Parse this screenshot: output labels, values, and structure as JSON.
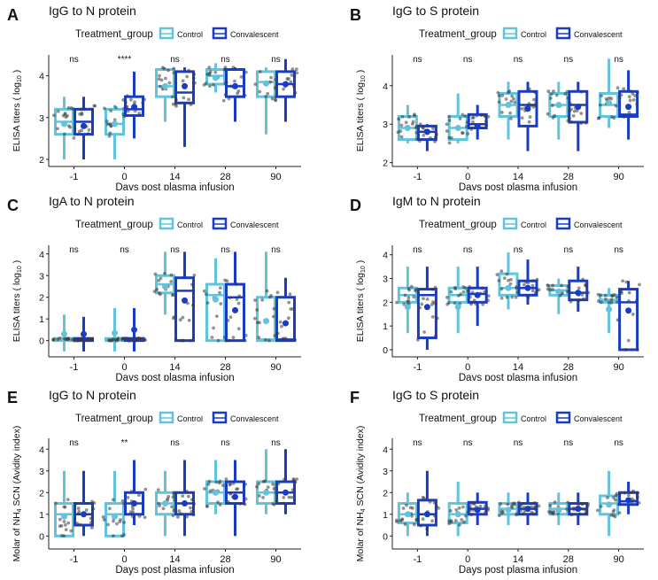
{
  "colors": {
    "Control": "#62c3dc",
    "Convalescent": "#1a3cc4",
    "points": "#3a3a3a"
  },
  "legend": {
    "title": "Treatment_group",
    "entries": [
      "Control",
      "Convalescent"
    ]
  },
  "chart_data": [
    {
      "panel_label": "A",
      "type": "box",
      "title": "IgG to N protein",
      "xlabel": "Days post plasma infusion",
      "ylabel": [
        "ELISA titers ( log",
        "10",
        " )"
      ],
      "categories": [
        "-1",
        "0",
        "14",
        "28",
        "90"
      ],
      "ylim": [
        1.83,
        4.5
      ],
      "yticks": [
        2,
        3,
        4
      ],
      "significance": [
        "ns",
        "****",
        "ns",
        "ns",
        "ns"
      ],
      "series": [
        {
          "name": "Control",
          "stats_order": "whisker_low,q1,median,q3,whisker_high,mean",
          "boxes": [
            [
              2.0,
              2.6,
              2.9,
              3.2,
              3.5,
              2.85
            ],
            [
              2.0,
              2.6,
              2.85,
              3.2,
              3.3,
              2.85
            ],
            [
              2.9,
              3.5,
              3.75,
              4.15,
              4.2,
              3.75
            ],
            [
              3.6,
              3.8,
              4.0,
              4.15,
              4.3,
              3.95
            ],
            [
              2.6,
              3.5,
              3.85,
              4.1,
              4.2,
              3.82
            ]
          ]
        },
        {
          "name": "Convalescent",
          "boxes": [
            [
              2.0,
              2.6,
              2.9,
              3.2,
              3.5,
              2.8
            ],
            [
              2.5,
              3.05,
              3.2,
              3.5,
              4.1,
              3.25
            ],
            [
              2.3,
              3.35,
              3.6,
              4.1,
              4.2,
              3.75
            ],
            [
              2.9,
              3.5,
              3.75,
              4.15,
              4.2,
              3.75
            ],
            [
              2.9,
              3.5,
              3.8,
              4.1,
              4.4,
              3.8
            ]
          ]
        }
      ]
    },
    {
      "panel_label": "B",
      "type": "box",
      "title": "IgG to S protein",
      "xlabel": "Days post plasma infusion",
      "ylabel": [
        "ELISA titers ( log",
        "10",
        " )"
      ],
      "categories": [
        "-1",
        "0",
        "14",
        "28",
        "90"
      ],
      "ylim": [
        1.9,
        4.8
      ],
      "yticks": [
        2,
        3,
        4
      ],
      "significance": [
        "ns",
        "ns",
        "ns",
        "ns",
        "ns"
      ],
      "series": [
        {
          "name": "Control",
          "boxes": [
            [
              2.5,
              2.6,
              2.9,
              3.2,
              3.5,
              2.9
            ],
            [
              2.5,
              2.6,
              2.9,
              3.2,
              3.8,
              2.9
            ],
            [
              2.6,
              3.2,
              3.5,
              3.8,
              4.1,
              3.5
            ],
            [
              2.6,
              3.2,
              3.5,
              3.8,
              4.1,
              3.5
            ],
            [
              2.9,
              3.2,
              3.5,
              3.8,
              4.7,
              3.55
            ]
          ]
        },
        {
          "name": "Convalescent",
          "boxes": [
            [
              2.3,
              2.6,
              2.8,
              2.95,
              3.0,
              2.8
            ],
            [
              2.6,
              2.9,
              3.0,
              3.25,
              3.5,
              2.95
            ],
            [
              2.3,
              2.95,
              3.5,
              3.85,
              4.1,
              3.4
            ],
            [
              2.3,
              3.05,
              3.5,
              3.85,
              4.1,
              3.45
            ],
            [
              2.6,
              3.2,
              3.25,
              3.85,
              4.4,
              3.45
            ]
          ]
        }
      ]
    },
    {
      "panel_label": "C",
      "type": "box",
      "title": "IgA to N protein",
      "xlabel": "Days post plasma infusion",
      "ylabel": [
        "ELISA titers ( log",
        "10",
        " )"
      ],
      "categories": [
        "-1",
        "0",
        "14",
        "28",
        "90"
      ],
      "ylim": [
        -0.75,
        4.4
      ],
      "yticks": [
        0,
        1,
        2,
        3,
        4
      ],
      "significance": [
        "ns",
        "ns",
        "ns",
        "ns",
        "ns"
      ],
      "series": [
        {
          "name": "Control",
          "boxes": [
            [
              -0.5,
              0,
              0.05,
              0.1,
              1.2,
              0.3
            ],
            [
              -0.5,
              0,
              0.05,
              0.1,
              1.5,
              0.35
            ],
            [
              1.2,
              2.2,
              2.6,
              3.0,
              4.1,
              2.5
            ],
            [
              0,
              0,
              2.1,
              2.6,
              3.8,
              1.9
            ],
            [
              0,
              0,
              0.05,
              2.0,
              4.1,
              0.9
            ]
          ]
        },
        {
          "name": "Convalescent",
          "boxes": [
            [
              -0.5,
              0,
              0.05,
              0.1,
              1.1,
              0.3
            ],
            [
              -0.5,
              0,
              0.05,
              0.1,
              1.5,
              0.5
            ],
            [
              0,
              0,
              2.3,
              2.9,
              4.1,
              1.85
            ],
            [
              0,
              0,
              2.0,
              2.6,
              4.1,
              1.4
            ],
            [
              0,
              0,
              0.05,
              2.0,
              2.9,
              0.8
            ]
          ]
        }
      ]
    },
    {
      "panel_label": "D",
      "type": "box",
      "title": "IgM to N protein",
      "xlabel": "Days post plasma infusion",
      "ylabel": [
        "ELISA titers ( log",
        "10",
        " )"
      ],
      "categories": [
        "-1",
        "0",
        "14",
        "28",
        "90"
      ],
      "ylim": [
        -0.3,
        4.4
      ],
      "yticks": [
        0,
        1,
        2,
        3,
        4
      ],
      "significance": [
        "ns",
        "ns",
        "ns",
        "ns",
        "ns"
      ],
      "series": [
        {
          "name": "Control",
          "boxes": [
            [
              0.7,
              2.0,
              2.3,
              2.6,
              3.5,
              1.8
            ],
            [
              0.7,
              2.0,
              2.3,
              2.6,
              3.5,
              1.8
            ],
            [
              1.7,
              2.3,
              2.6,
              3.2,
              4.1,
              2.6
            ],
            [
              1.5,
              2.3,
              2.5,
              2.7,
              3.0,
              2.45
            ],
            [
              0.7,
              2.0,
              2.1,
              2.3,
              2.6,
              1.7
            ]
          ]
        },
        {
          "name": "Convalescent",
          "boxes": [
            [
              0,
              0.5,
              2.3,
              2.55,
              3.5,
              1.8
            ],
            [
              1.0,
              2.0,
              2.35,
              2.6,
              3.5,
              2.3
            ],
            [
              1.9,
              2.3,
              2.6,
              2.9,
              3.8,
              2.6
            ],
            [
              1.6,
              2.1,
              2.4,
              2.9,
              3.5,
              2.4
            ],
            [
              0,
              0,
              2.0,
              2.55,
              2.9,
              1.65
            ]
          ]
        }
      ]
    },
    {
      "panel_label": "E",
      "type": "box",
      "title": "IgG to N protein",
      "xlabel": "Days post plasma infusion",
      "ylabel": [
        "Molar of NH",
        "4",
        " SCN (Avidity index)"
      ],
      "categories": [
        "-1",
        "0",
        "14",
        "28",
        "90"
      ],
      "ylim": [
        -0.6,
        4.5
      ],
      "yticks": [
        0,
        1,
        2,
        3,
        4
      ],
      "significance": [
        "ns",
        "**",
        "ns",
        "ns",
        "ns"
      ],
      "series": [
        {
          "name": "Control",
          "boxes": [
            [
              0,
              0,
              1.0,
              1.5,
              3.0,
              0.9
            ],
            [
              0,
              0,
              1.0,
              1.5,
              3.0,
              0.9
            ],
            [
              0,
              1.0,
              1.5,
              2.0,
              3.0,
              1.5
            ],
            [
              1.0,
              1.5,
              2.0,
              2.5,
              3.5,
              2.0
            ],
            [
              1.0,
              1.5,
              2.0,
              2.5,
              4.0,
              2.0
            ]
          ]
        },
        {
          "name": "Convalescent",
          "boxes": [
            [
              0,
              0.5,
              1.0,
              1.5,
              3.0,
              1.0
            ],
            [
              0.5,
              1.0,
              1.5,
              2.0,
              3.5,
              1.5
            ],
            [
              0,
              1.0,
              1.5,
              2.0,
              3.5,
              1.5
            ],
            [
              0,
              1.5,
              2.0,
              2.5,
              3.5,
              1.8
            ],
            [
              1.0,
              1.5,
              2.0,
              2.5,
              4.0,
              2.0
            ]
          ]
        }
      ]
    },
    {
      "panel_label": "F",
      "type": "box",
      "title": "IgG to S protein",
      "xlabel": "Days post plasma infusion",
      "ylabel": [
        "Molar of NH",
        "4",
        " SCN (Avidity index)"
      ],
      "categories": [
        "-1",
        "0",
        "14",
        "28",
        "90"
      ],
      "ylim": [
        -0.6,
        4.5
      ],
      "yticks": [
        0,
        1,
        2,
        3,
        4
      ],
      "significance": [
        "ns",
        "ns",
        "ns",
        "ns",
        "ns"
      ],
      "series": [
        {
          "name": "Control",
          "boxes": [
            [
              0,
              0.6,
              1.0,
              1.5,
              2.0,
              1.0
            ],
            [
              0,
              0.6,
              1.0,
              1.5,
              2.5,
              1.0
            ],
            [
              0.5,
              1.0,
              1.25,
              1.5,
              2.0,
              1.2
            ],
            [
              0.5,
              1.0,
              1.25,
              1.5,
              2.0,
              1.2
            ],
            [
              0,
              1.0,
              1.5,
              1.85,
              3.0,
              1.45
            ]
          ]
        },
        {
          "name": "Convalescent",
          "boxes": [
            [
              0,
              0.5,
              1.0,
              1.65,
              3.0,
              1.0
            ],
            [
              0.5,
              1.0,
              1.25,
              1.55,
              2.0,
              1.2
            ],
            [
              0.5,
              1.0,
              1.25,
              1.5,
              2.0,
              1.25
            ],
            [
              0.5,
              1.0,
              1.25,
              1.5,
              2.0,
              1.25
            ],
            [
              1.0,
              1.45,
              1.6,
              2.0,
              2.5,
              1.65
            ]
          ]
        }
      ]
    }
  ]
}
